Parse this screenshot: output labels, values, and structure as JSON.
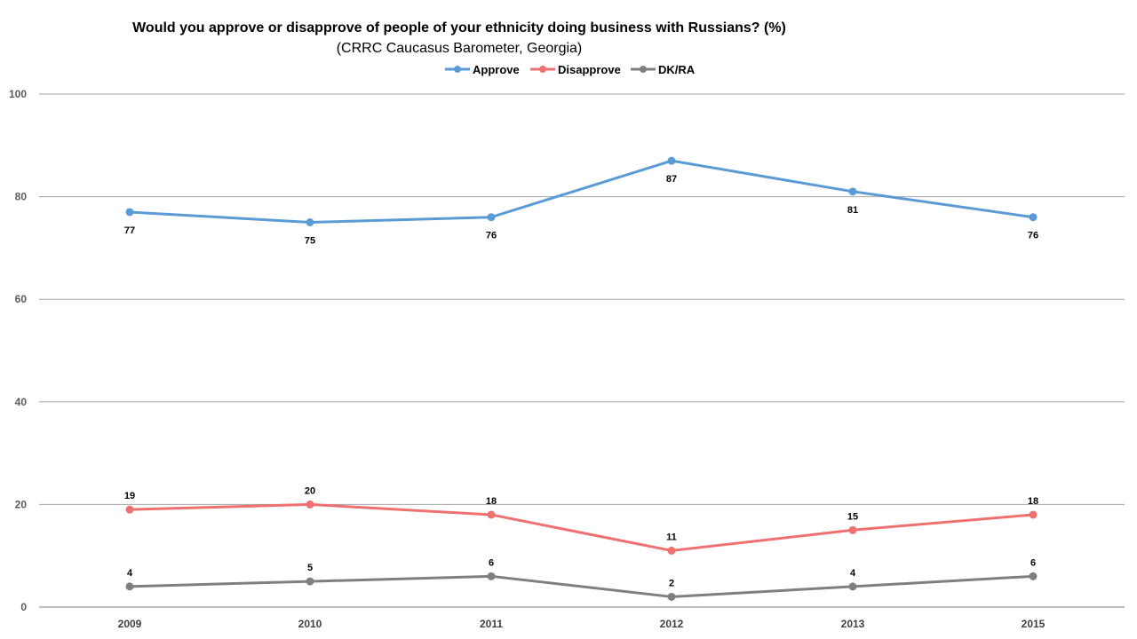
{
  "chart_data": {
    "type": "line",
    "title": "Would you approve or disapprove of people of your ethnicity doing business with Russians? (%)",
    "subtitle": "(CRRC Caucasus Barometer, Georgia)",
    "categories": [
      "2009",
      "2010",
      "2011",
      "2012",
      "2013",
      "2015"
    ],
    "series": [
      {
        "name": "Approve",
        "color": "#5B9BD5",
        "values": [
          77,
          75,
          76,
          87,
          81,
          76
        ],
        "label_position": "below"
      },
      {
        "name": "Disapprove",
        "color": "#F07070",
        "values": [
          19,
          20,
          18,
          11,
          15,
          18
        ],
        "label_position": "above"
      },
      {
        "name": "DK/RA",
        "color": "#7F7F7F",
        "values": [
          4,
          5,
          6,
          2,
          4,
          6
        ],
        "label_position": "above"
      }
    ],
    "ylim": [
      0,
      100
    ],
    "yticks": [
      0,
      20,
      40,
      60,
      80,
      100
    ],
    "grid": true,
    "legend_position": "top-center"
  }
}
